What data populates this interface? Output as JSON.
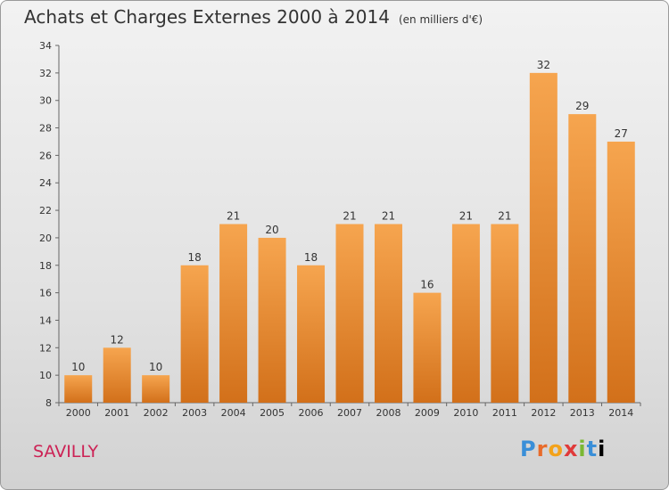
{
  "header": {
    "title": "Achats et Charges Externes 2000 à 2014",
    "unit": "(en milliers d'€)"
  },
  "footer": {
    "location": "SAVILLY",
    "logo": "Proxiti"
  },
  "colors": {
    "bar_light": "#f6a54f",
    "bar_dark": "#d2701a",
    "axis": "#666666",
    "location": "#cc2255"
  },
  "chart_data": {
    "type": "bar",
    "categories": [
      "2000",
      "2001",
      "2002",
      "2003",
      "2004",
      "2005",
      "2006",
      "2007",
      "2008",
      "2009",
      "2010",
      "2011",
      "2012",
      "2013",
      "2014"
    ],
    "values": [
      10,
      12,
      10,
      18,
      21,
      20,
      18,
      21,
      21,
      16,
      21,
      21,
      32,
      29,
      27
    ],
    "ylim": [
      8,
      34
    ],
    "yticks": [
      8,
      10,
      12,
      14,
      16,
      18,
      20,
      22,
      24,
      26,
      28,
      30,
      32,
      34
    ],
    "grid": false,
    "data_labels": true
  }
}
